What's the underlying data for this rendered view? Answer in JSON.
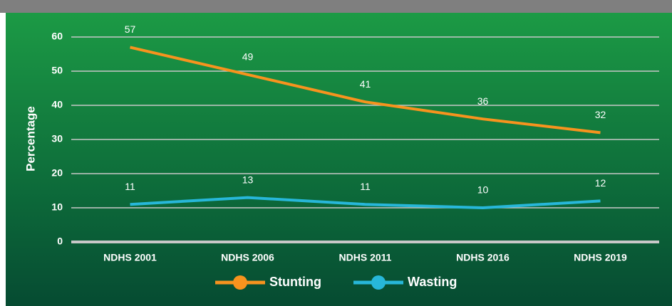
{
  "chart_data": {
    "type": "line",
    "y_label": "Percentage",
    "categories": [
      "NDHS 2001",
      "NDHS 2006",
      "NDHS 2011",
      "NDHS 2016",
      "NDHS 2019"
    ],
    "series": [
      {
        "name": "Stunting",
        "color": "#f7931e",
        "values": [
          57,
          49,
          41,
          36,
          32
        ]
      },
      {
        "name": "Wasting",
        "color": "#27b7d9",
        "values": [
          11,
          13,
          11,
          10,
          12
        ]
      }
    ],
    "ylim": [
      0,
      60
    ],
    "yticks": [
      0,
      10,
      20,
      30,
      40,
      50,
      60
    ],
    "grid": true,
    "legend": "bottom"
  }
}
